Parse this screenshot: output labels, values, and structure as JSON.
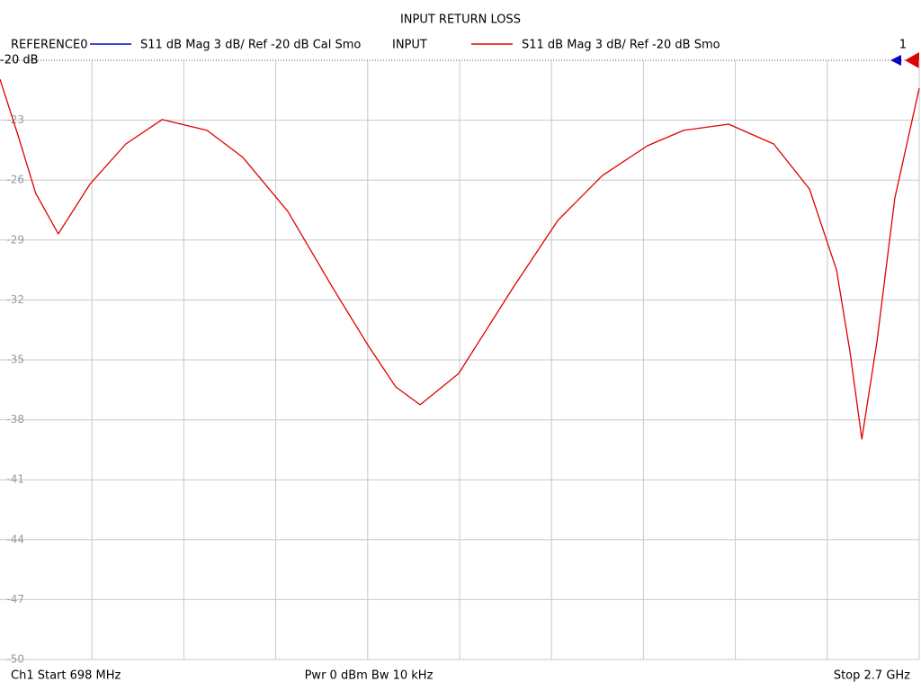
{
  "chart_data": {
    "type": "line",
    "title": "INPUT RETURN LOSS",
    "reference_trace": {
      "name": "REFERENCE0",
      "color": "#0000cc",
      "description": "S11  dB Mag  3 dB/ Ref -20 dB  Cal Smo"
    },
    "x": [
      698,
      737,
      776,
      825,
      894,
      972,
      1051,
      1149,
      1227,
      1325,
      1423,
      1501,
      1560,
      1613,
      1697,
      1815,
      1913,
      2010,
      2108,
      2187,
      2285,
      2383,
      2461,
      2520,
      2549,
      2575,
      2608,
      2647,
      2700
    ],
    "series": [
      {
        "name": "INPUT",
        "color": "#e00000",
        "description": "S11  dB Mag  3 dB/ Ref -20 dB  Smo",
        "values": [
          -20.95,
          -23.74,
          -26.67,
          -28.69,
          -26.2,
          -24.19,
          -22.97,
          -23.51,
          -24.86,
          -27.57,
          -31.4,
          -34.32,
          -36.35,
          -37.25,
          -35.68,
          -31.4,
          -28.02,
          -25.77,
          -24.28,
          -23.51,
          -23.2,
          -24.19,
          -26.44,
          -30.5,
          -34.55,
          -38.96,
          -34.1,
          -26.9,
          -21.4
        ]
      }
    ],
    "xlim": [
      698,
      2700
    ],
    "ylim": [
      -50,
      -20
    ],
    "yticks": [
      {
        "value": -20,
        "label": "-20 dB"
      },
      -23,
      -26,
      -29,
      -32,
      -35,
      -38,
      -41,
      -44,
      -47,
      -50
    ],
    "grid": true,
    "marker_label": "1",
    "start_label": "Ch1  Start  698 MHz",
    "center_label": "Pwr  0 dBm  Bw  10 kHz",
    "stop_label": "Stop  2.7 GHz"
  }
}
